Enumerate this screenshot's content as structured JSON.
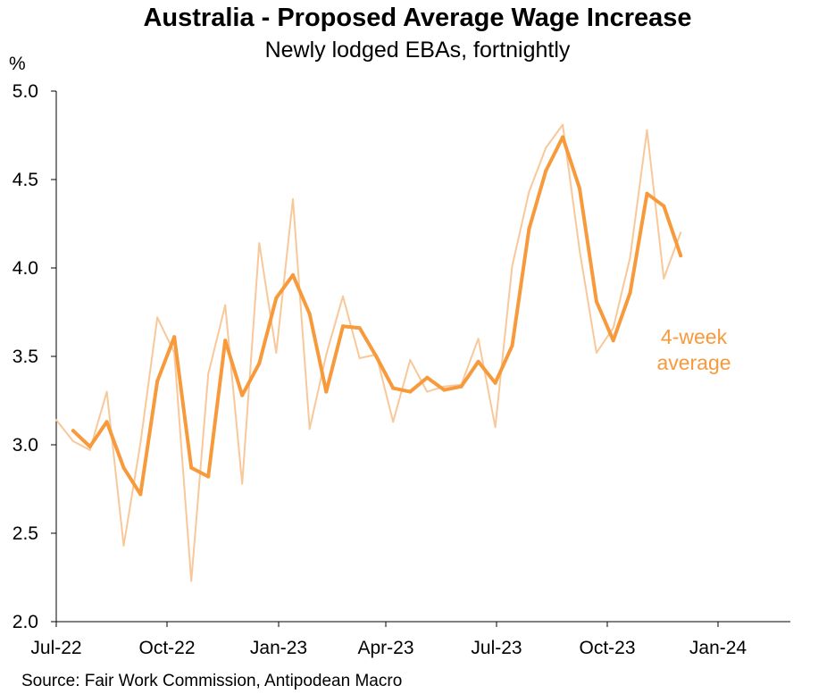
{
  "title": "Australia - Proposed Average Wage Increase",
  "subtitle": "Newly lodged EBAs, fortnightly",
  "source": "Source: Fair Work Commission, Antipodean Macro",
  "chart_data": {
    "type": "line",
    "title": "Australia - Proposed Average Wage Increase",
    "subtitle": "Newly lodged EBAs, fortnightly",
    "ylabel": "%",
    "xlabel": "",
    "ylim": [
      2.0,
      5.0
    ],
    "yticks": [
      "2.0",
      "2.5",
      "3.0",
      "3.5",
      "4.0",
      "4.5",
      "5.0"
    ],
    "xticks": [
      "Jul-22",
      "Oct-22",
      "Jan-23",
      "Apr-23",
      "Jul-23",
      "Oct-23",
      "Jan-24"
    ],
    "grid": false,
    "colors": {
      "fortnightly": "#f8c89a",
      "four_week": "#f79a3c"
    },
    "annotations": [
      {
        "text_lines": [
          "4-week",
          "average"
        ],
        "series": "4-week average"
      }
    ],
    "series": [
      {
        "name": "",
        "values": [
          [
            "2022-07-01",
            3.14
          ],
          [
            "2022-07-15",
            3.02
          ],
          [
            "2022-07-29",
            2.97
          ],
          [
            "2022-08-12",
            3.3
          ],
          [
            "2022-08-26",
            2.43
          ],
          [
            "2022-09-09",
            3.01
          ],
          [
            "2022-09-23",
            3.72
          ],
          [
            "2022-10-07",
            3.52
          ],
          [
            "2022-10-21",
            2.23
          ],
          [
            "2022-11-04",
            3.4
          ],
          [
            "2022-11-18",
            3.79
          ],
          [
            "2022-12-02",
            2.78
          ],
          [
            "2022-12-16",
            4.14
          ],
          [
            "2022-12-30",
            3.52
          ],
          [
            "2023-01-13",
            4.39
          ],
          [
            "2023-01-27",
            3.09
          ],
          [
            "2023-02-10",
            3.51
          ],
          [
            "2023-02-24",
            3.84
          ],
          [
            "2023-03-10",
            3.49
          ],
          [
            "2023-03-24",
            3.51
          ],
          [
            "2023-04-07",
            3.13
          ],
          [
            "2023-04-21",
            3.48
          ],
          [
            "2023-05-05",
            3.3
          ],
          [
            "2023-05-19",
            3.33
          ],
          [
            "2023-06-02",
            3.34
          ],
          [
            "2023-06-16",
            3.6
          ],
          [
            "2023-06-30",
            3.1
          ],
          [
            "2023-07-14",
            4.01
          ],
          [
            "2023-07-28",
            4.43
          ],
          [
            "2023-08-11",
            4.68
          ],
          [
            "2023-08-25",
            4.81
          ],
          [
            "2023-09-08",
            4.1
          ],
          [
            "2023-09-22",
            3.52
          ],
          [
            "2023-10-06",
            3.66
          ],
          [
            "2023-10-20",
            4.06
          ],
          [
            "2023-11-03",
            4.78
          ],
          [
            "2023-11-17",
            3.94
          ],
          [
            "2023-12-01",
            4.2
          ]
        ]
      },
      {
        "name": "4-week average",
        "values": [
          [
            "2022-07-15",
            3.08
          ],
          [
            "2022-07-29",
            2.99
          ],
          [
            "2022-08-12",
            3.13
          ],
          [
            "2022-08-26",
            2.87
          ],
          [
            "2022-09-09",
            2.72
          ],
          [
            "2022-09-23",
            3.36
          ],
          [
            "2022-10-07",
            3.61
          ],
          [
            "2022-10-21",
            2.87
          ],
          [
            "2022-11-04",
            2.82
          ],
          [
            "2022-11-18",
            3.59
          ],
          [
            "2022-12-02",
            3.28
          ],
          [
            "2022-12-16",
            3.46
          ],
          [
            "2022-12-30",
            3.83
          ],
          [
            "2023-01-13",
            3.96
          ],
          [
            "2023-01-27",
            3.74
          ],
          [
            "2023-02-10",
            3.3
          ],
          [
            "2023-02-24",
            3.67
          ],
          [
            "2023-03-10",
            3.66
          ],
          [
            "2023-03-24",
            3.5
          ],
          [
            "2023-04-07",
            3.32
          ],
          [
            "2023-04-21",
            3.3
          ],
          [
            "2023-05-05",
            3.38
          ],
          [
            "2023-05-19",
            3.31
          ],
          [
            "2023-06-02",
            3.33
          ],
          [
            "2023-06-16",
            3.47
          ],
          [
            "2023-06-30",
            3.35
          ],
          [
            "2023-07-14",
            3.56
          ],
          [
            "2023-07-28",
            4.22
          ],
          [
            "2023-08-11",
            4.55
          ],
          [
            "2023-08-25",
            4.74
          ],
          [
            "2023-09-08",
            4.45
          ],
          [
            "2023-09-22",
            3.81
          ],
          [
            "2023-10-06",
            3.59
          ],
          [
            "2023-10-20",
            3.86
          ],
          [
            "2023-11-03",
            4.42
          ],
          [
            "2023-11-17",
            4.35
          ],
          [
            "2023-12-01",
            4.07
          ]
        ]
      }
    ]
  }
}
